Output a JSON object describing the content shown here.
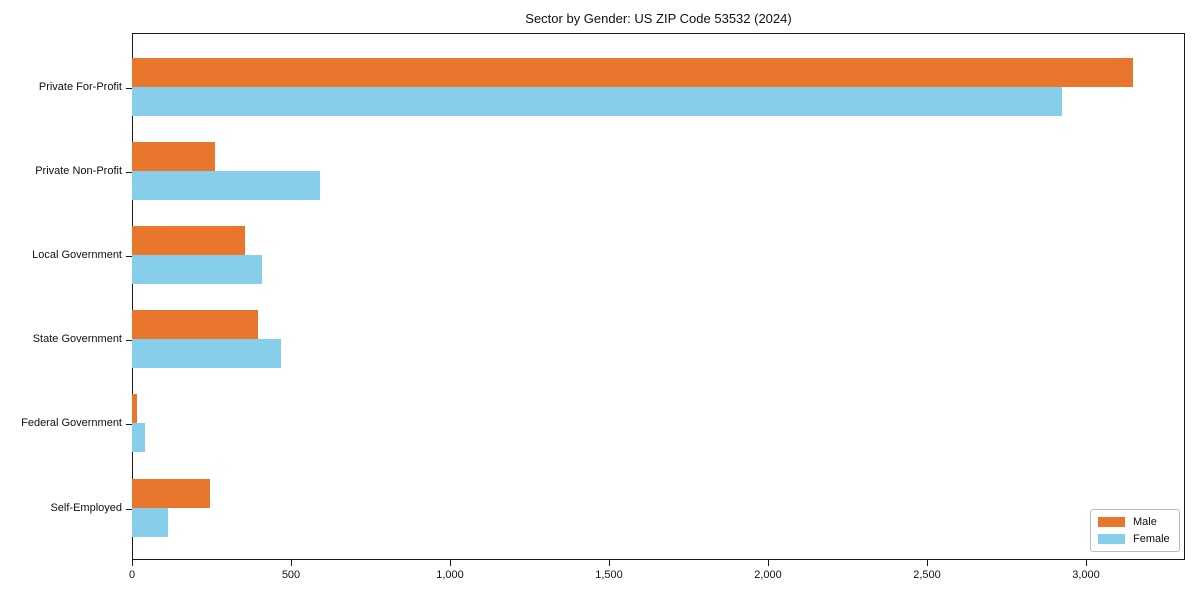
{
  "chart_data": {
    "type": "bar",
    "orientation": "horizontal",
    "title": "Sector by Gender: US ZIP Code 53532 (2024)",
    "categories": [
      "Private For-Profit",
      "Private Non-Profit",
      "Local Government",
      "State Government",
      "Federal Government",
      "Self-Employed"
    ],
    "series": [
      {
        "name": "Male",
        "color": "#e8762d",
        "values": [
          3150,
          260,
          355,
          395,
          17,
          245
        ]
      },
      {
        "name": "Female",
        "color": "#87ceeb",
        "values": [
          2925,
          590,
          410,
          470,
          42,
          112
        ]
      }
    ],
    "xlabel": "",
    "ylabel": "",
    "xlim": [
      0,
      3313
    ],
    "x_ticks": [
      0,
      500,
      1000,
      1500,
      2000,
      2500,
      3000
    ],
    "x_tick_labels": [
      "0",
      "500",
      "1,000",
      "1,500",
      "2,000",
      "2,500",
      "3,000"
    ],
    "grid": false,
    "legend_position": "lower right",
    "colors": {
      "background": "#ffffff",
      "axis": "#1a1a1a",
      "legend_border": "#bdbdbd"
    }
  }
}
